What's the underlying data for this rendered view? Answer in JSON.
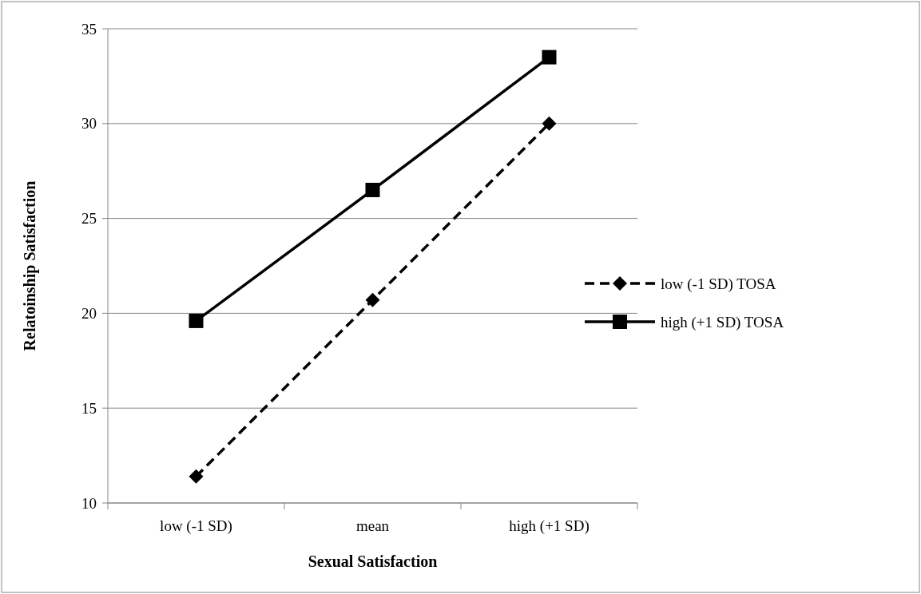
{
  "chart_data": {
    "type": "line",
    "xlabel": "Sexual Satisfaction",
    "ylabel": "Relatoinship Satisfaction",
    "categories": [
      "low (-1 SD)",
      "mean",
      "high (+1 SD)"
    ],
    "series": [
      {
        "name": "low (-1 SD) TOSA",
        "color": "#000000",
        "values": [
          11.4,
          20.7,
          30.0
        ],
        "marker": "diamond",
        "line_style": "dashed"
      },
      {
        "name": "high (+1 SD) TOSA",
        "color": "#000000",
        "values": [
          19.6,
          26.5,
          33.5
        ],
        "marker": "square",
        "line_style": "solid"
      }
    ],
    "ylim": [
      10,
      35
    ],
    "yticks": [
      10,
      15,
      20,
      25,
      30,
      35
    ],
    "grid": "y",
    "legend": "right"
  }
}
